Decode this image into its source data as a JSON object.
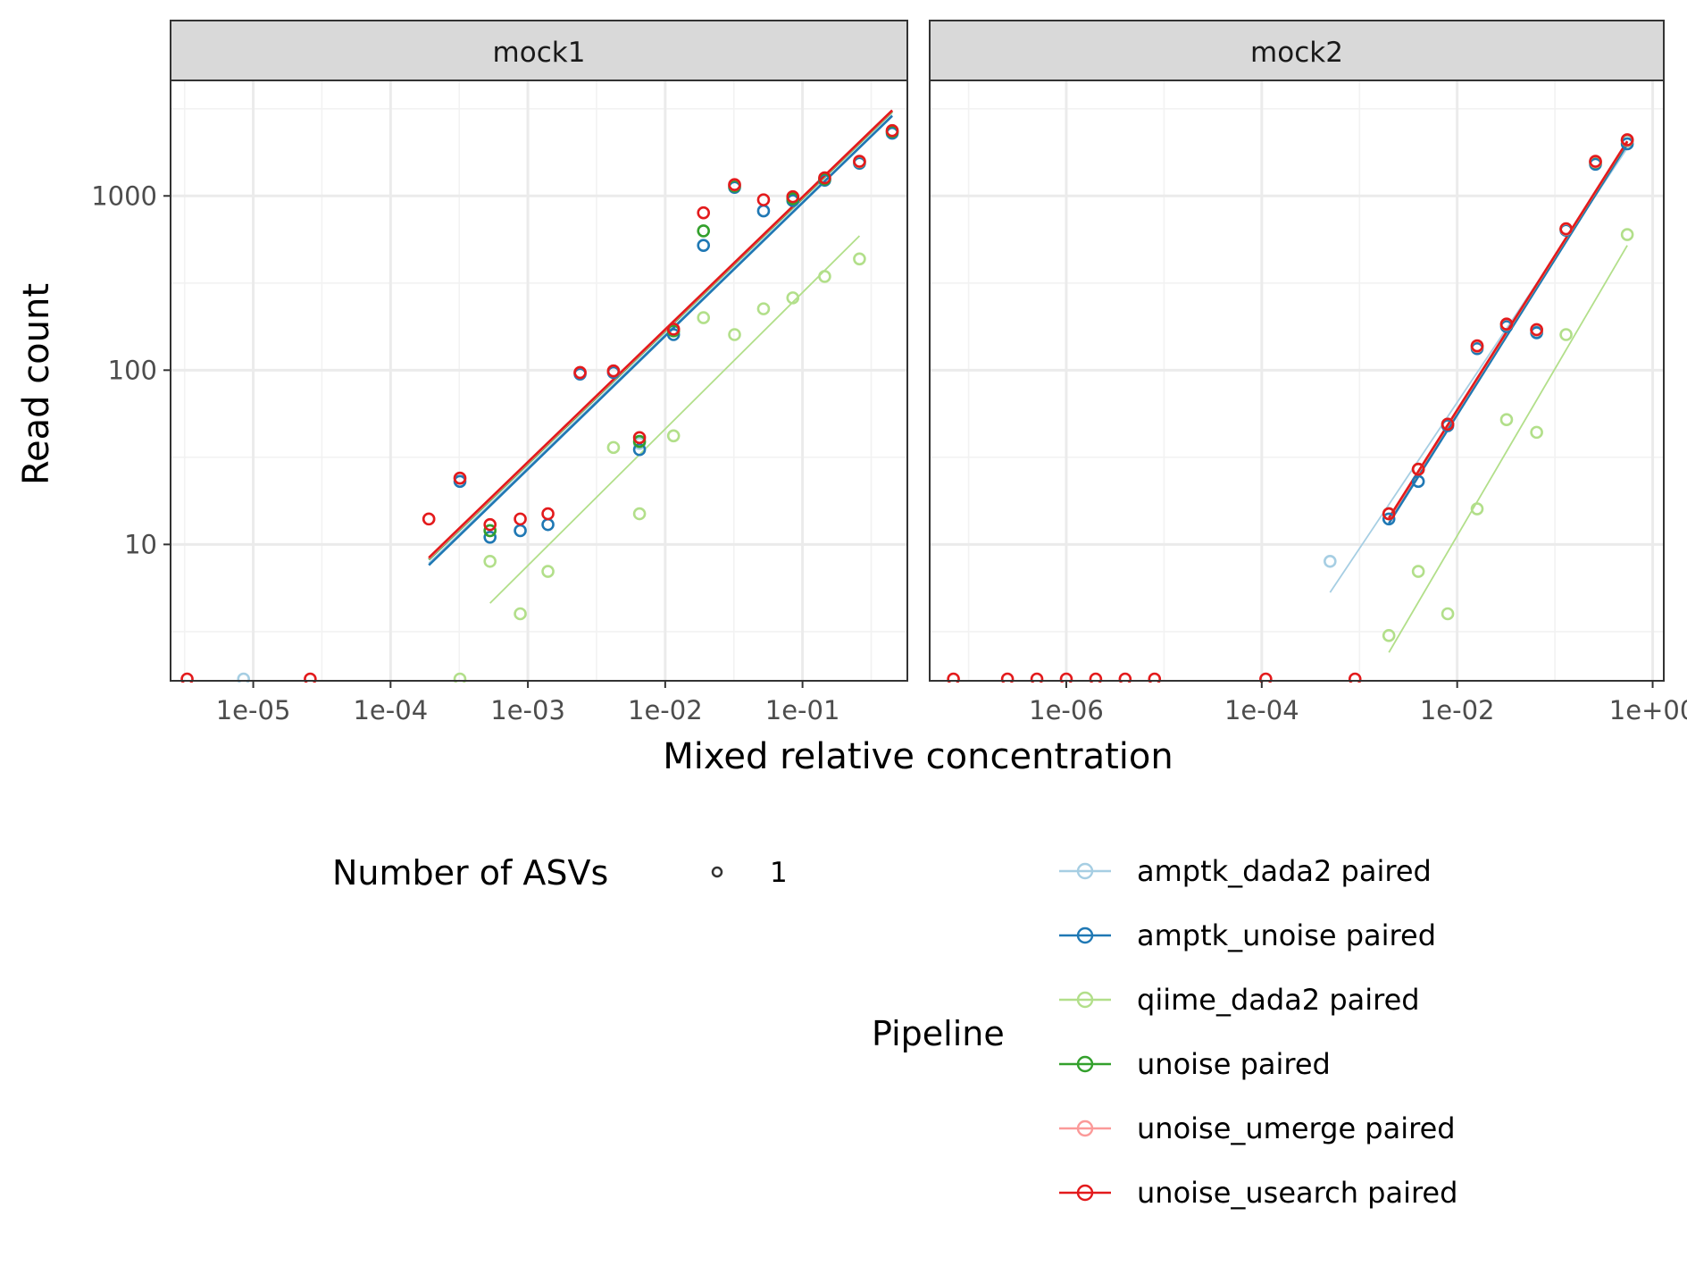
{
  "chart_data": {
    "type": "scatter",
    "ylabel": "Read count",
    "xlabel": "Mixed relative concentration",
    "x_scale": "log10",
    "y_scale": "log10",
    "y_ticks": [
      {
        "value": 10,
        "label": "10"
      },
      {
        "value": 100,
        "label": "100"
      },
      {
        "value": 1000,
        "label": "1000"
      }
    ],
    "legend_size": {
      "title": "Number of ASVs",
      "entries": [
        "1"
      ]
    },
    "legend_color": {
      "title": "Pipeline"
    },
    "colors": {
      "amptk_dada2 paired": "#A6CEE3",
      "amptk_unoise paired": "#1F78B4",
      "qiime_dada2 paired": "#B2DF8A",
      "unoise paired": "#33A02C",
      "unoise_umerge paired": "#FB9A99",
      "unoise_usearch paired": "#E31A1C"
    },
    "series_names": [
      "amptk_dada2 paired",
      "amptk_unoise paired",
      "qiime_dada2 paired",
      "unoise paired",
      "unoise_umerge paired",
      "unoise_usearch paired"
    ],
    "panels": [
      {
        "title": "mock1",
        "xlim": [
          2.5e-06,
          0.58
        ],
        "ylim": [
          1.65,
          4600
        ],
        "x_ticks": [
          {
            "value": 1e-05,
            "label": "1e-05"
          },
          {
            "value": 0.0001,
            "label": "1e-04"
          },
          {
            "value": 0.001,
            "label": "1e-03"
          },
          {
            "value": 0.01,
            "label": "1e-02"
          },
          {
            "value": 0.1,
            "label": "1e-01"
          }
        ],
        "floor_points": [
          {
            "x": 3.3e-06,
            "series": "unoise_usearch paired"
          },
          {
            "x": 8.5e-06,
            "series": "amptk_dada2 paired"
          },
          {
            "x": 2.6e-05,
            "series": "unoise_usearch paired"
          },
          {
            "x": 0.00032,
            "series": "qiime_dada2 paired"
          }
        ],
        "fit_lines": [
          {
            "series": "amptk_dada2 paired",
            "x": [
              0.00019,
              0.45
            ],
            "y": [
              7.8,
              2920
            ]
          },
          {
            "series": "amptk_unoise paired",
            "x": [
              0.00019,
              0.45
            ],
            "y": [
              7.6,
              2880
            ]
          },
          {
            "series": "unoise paired",
            "x": [
              0.00019,
              0.45
            ],
            "y": [
              8.2,
              3050
            ]
          },
          {
            "series": "unoise_umerge paired",
            "x": [
              0.00019,
              0.45
            ],
            "y": [
              8.3,
              3080
            ]
          },
          {
            "series": "unoise_usearch paired",
            "x": [
              0.00019,
              0.45
            ],
            "y": [
              8.4,
              3100
            ]
          },
          {
            "series": "qiime_dada2 paired",
            "x": [
              0.00053,
              0.26
            ],
            "y": [
              4.6,
              590
            ]
          }
        ],
        "series": [
          {
            "name": "qiime_dada2 paired",
            "points": [
              [
                0.00053,
                8
              ],
              [
                0.00088,
                4
              ],
              [
                0.0014,
                7
              ],
              [
                0.0042,
                36
              ],
              [
                0.0065,
                15
              ],
              [
                0.0115,
                42
              ],
              [
                0.019,
                200
              ],
              [
                0.032,
                160
              ],
              [
                0.052,
                225
              ],
              [
                0.085,
                260
              ],
              [
                0.145,
                345
              ],
              [
                0.26,
                435
              ]
            ]
          },
          {
            "name": "amptk_dada2 paired",
            "points": [
              [
                0.00032,
                24
              ],
              [
                0.00053,
                12
              ],
              [
                0.0024,
                96
              ],
              [
                0.0042,
                98
              ],
              [
                0.0065,
                38
              ],
              [
                0.0115,
                170
              ],
              [
                0.032,
                1150
              ],
              [
                0.085,
                960
              ],
              [
                0.145,
                1260
              ],
              [
                0.26,
                1560
              ],
              [
                0.45,
                2320
              ]
            ]
          },
          {
            "name": "amptk_unoise paired",
            "points": [
              [
                0.00032,
                23
              ],
              [
                0.00053,
                11
              ],
              [
                0.00088,
                12
              ],
              [
                0.0014,
                13
              ],
              [
                0.0024,
                95
              ],
              [
                0.0042,
                97
              ],
              [
                0.0065,
                35
              ],
              [
                0.0115,
                160
              ],
              [
                0.019,
                520
              ],
              [
                0.032,
                1120
              ],
              [
                0.052,
                820
              ],
              [
                0.085,
                940
              ],
              [
                0.145,
                1230
              ],
              [
                0.26,
                1540
              ],
              [
                0.45,
                2290
              ]
            ]
          },
          {
            "name": "unoise paired",
            "points": [
              [
                0.00053,
                12
              ],
              [
                0.0065,
                39
              ],
              [
                0.0115,
                168
              ],
              [
                0.019,
                630
              ],
              [
                0.032,
                1140
              ],
              [
                0.085,
                965
              ],
              [
                0.145,
                1250
              ],
              [
                0.26,
                1570
              ],
              [
                0.45,
                2340
              ]
            ]
          },
          {
            "name": "unoise_umerge paired",
            "points": [
              [
                0.00019,
                14
              ],
              [
                0.00032,
                24
              ],
              [
                0.0024,
                97
              ],
              [
                0.0042,
                99
              ],
              [
                0.0115,
                172
              ],
              [
                0.032,
                1160
              ],
              [
                0.26,
                1575
              ]
            ]
          },
          {
            "name": "unoise_usearch paired",
            "points": [
              [
                0.00019,
                14
              ],
              [
                0.00032,
                24
              ],
              [
                0.00053,
                13
              ],
              [
                0.00088,
                14
              ],
              [
                0.0014,
                15
              ],
              [
                0.0024,
                97
              ],
              [
                0.0042,
                99
              ],
              [
                0.0065,
                41
              ],
              [
                0.0115,
                172
              ],
              [
                0.019,
                800
              ],
              [
                0.032,
                1160
              ],
              [
                0.052,
                950
              ],
              [
                0.085,
                990
              ],
              [
                0.145,
                1270
              ],
              [
                0.26,
                1580
              ],
              [
                0.45,
                2370
              ]
            ]
          }
        ]
      },
      {
        "title": "mock2",
        "xlim": [
          4e-08,
          1.3
        ],
        "ylim": [
          1.65,
          4600
        ],
        "x_ticks": [
          {
            "value": 1e-06,
            "label": "1e-06"
          },
          {
            "value": 0.0001,
            "label": "1e-04"
          },
          {
            "value": 0.01,
            "label": "1e-02"
          },
          {
            "value": 1,
            "label": "1e+00"
          }
        ],
        "floor_points": [
          {
            "x": 7e-08,
            "series": "unoise_usearch paired"
          },
          {
            "x": 2.5e-07,
            "series": "unoise_usearch paired"
          },
          {
            "x": 5e-07,
            "series": "unoise_usearch paired"
          },
          {
            "x": 1e-06,
            "series": "unoise_usearch paired"
          },
          {
            "x": 2e-06,
            "series": "unoise_usearch paired"
          },
          {
            "x": 4e-06,
            "series": "unoise_usearch paired"
          },
          {
            "x": 8e-06,
            "series": "unoise_usearch paired"
          },
          {
            "x": 0.00011,
            "series": "unoise_usearch paired"
          },
          {
            "x": 0.0009,
            "series": "unoise_usearch paired"
          }
        ],
        "fit_lines": [
          {
            "series": "amptk_dada2 paired",
            "x": [
              0.0005,
              0.55
            ],
            "y": [
              5.3,
              1880
            ]
          },
          {
            "series": "amptk_unoise paired",
            "x": [
              0.002,
              0.55
            ],
            "y": [
              13.2,
              1980
            ]
          },
          {
            "series": "unoise paired",
            "x": [
              0.002,
              0.55
            ],
            "y": [
              14.0,
              2040
            ]
          },
          {
            "series": "unoise_umerge paired",
            "x": [
              0.002,
              0.55
            ],
            "y": [
              14.0,
              2050
            ]
          },
          {
            "series": "unoise_usearch paired",
            "x": [
              0.002,
              0.55
            ],
            "y": [
              14.2,
              2060
            ]
          },
          {
            "series": "qiime_dada2 paired",
            "x": [
              0.002,
              0.55
            ],
            "y": [
              2.4,
              520
            ]
          }
        ],
        "series": [
          {
            "name": "amptk_dada2 paired",
            "points": [
              [
                0.0005,
                8
              ],
              [
                0.002,
                15
              ],
              [
                0.004,
                27
              ],
              [
                0.008,
                49
              ],
              [
                0.016,
                135
              ],
              [
                0.032,
                180
              ],
              [
                0.065,
                168
              ],
              [
                0.13,
                640
              ],
              [
                0.26,
                1560
              ],
              [
                0.55,
                2080
              ]
            ]
          },
          {
            "name": "qiime_dada2 paired",
            "points": [
              [
                0.002,
                3
              ],
              [
                0.004,
                7
              ],
              [
                0.008,
                4
              ],
              [
                0.016,
                16
              ],
              [
                0.032,
                52
              ],
              [
                0.065,
                44
              ],
              [
                0.13,
                160
              ],
              [
                0.55,
                600
              ]
            ]
          },
          {
            "name": "amptk_unoise paired",
            "points": [
              [
                0.002,
                14
              ],
              [
                0.004,
                23
              ],
              [
                0.008,
                48
              ],
              [
                0.016,
                133
              ],
              [
                0.032,
                178
              ],
              [
                0.065,
                164
              ],
              [
                0.13,
                635
              ],
              [
                0.26,
                1520
              ],
              [
                0.55,
                1990
              ]
            ]
          },
          {
            "name": "unoise paired",
            "points": [
              [
                0.002,
                15
              ],
              [
                0.004,
                27
              ],
              [
                0.008,
                49
              ],
              [
                0.016,
                137
              ],
              [
                0.032,
                183
              ],
              [
                0.065,
                170
              ],
              [
                0.13,
                645
              ],
              [
                0.26,
                1560
              ],
              [
                0.55,
                2080
              ]
            ]
          },
          {
            "name": "unoise_umerge paired",
            "points": [
              [
                0.002,
                15
              ],
              [
                0.004,
                27
              ],
              [
                0.008,
                49
              ],
              [
                0.016,
                137
              ],
              [
                0.032,
                183
              ],
              [
                0.065,
                170
              ],
              [
                0.13,
                645
              ],
              [
                0.26,
                1570
              ],
              [
                0.55,
                2090
              ]
            ]
          },
          {
            "name": "unoise_usearch paired",
            "points": [
              [
                0.002,
                15
              ],
              [
                0.004,
                27
              ],
              [
                0.008,
                49
              ],
              [
                0.016,
                138
              ],
              [
                0.032,
                184
              ],
              [
                0.065,
                171
              ],
              [
                0.13,
                648
              ],
              [
                0.26,
                1580
              ],
              [
                0.55,
                2100
              ]
            ]
          }
        ]
      }
    ]
  }
}
